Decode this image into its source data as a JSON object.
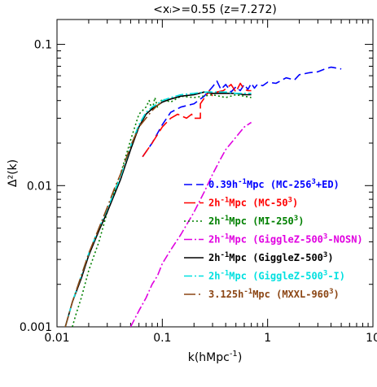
{
  "chart_data": {
    "type": "line",
    "title": "<x_i>=0.55 (z=7.272)",
    "xlabel": "k(hMpc^-1)",
    "ylabel": "Δ²(k)",
    "xscale": "log",
    "yscale": "log",
    "xlim": [
      0.01,
      10
    ],
    "ylim": [
      0.001,
      0.15
    ],
    "x_ticks": [
      {
        "value": 0.01,
        "label": "0.01"
      },
      {
        "value": 0.1,
        "label": "0.1"
      },
      {
        "value": 1,
        "label": "1"
      },
      {
        "value": 10,
        "label": "10"
      }
    ],
    "y_ticks": [
      {
        "value": 0.001,
        "label": "0.001"
      },
      {
        "value": 0.01,
        "label": "0.01"
      },
      {
        "value": 0.1,
        "label": "0.1"
      }
    ],
    "legend_position": "bottom-right",
    "series": [
      {
        "name": "0.39h^-1Mpc (MC-256^3+ED)",
        "color": "#0000ff",
        "dash": "10,5",
        "x": [
          0.065,
          0.08,
          0.1,
          0.12,
          0.15,
          0.2,
          0.25,
          0.3,
          0.33,
          0.36,
          0.4,
          0.45,
          0.5,
          0.55,
          0.6,
          0.65,
          0.7,
          0.75,
          0.8,
          0.9,
          1.0,
          1.2,
          1.5,
          1.8,
          2.0,
          2.5,
          3.0,
          3.5,
          4.0,
          4.5,
          5.0
        ],
        "y": [
          0.016,
          0.02,
          0.027,
          0.033,
          0.036,
          0.038,
          0.043,
          0.05,
          0.055,
          0.048,
          0.052,
          0.046,
          0.05,
          0.047,
          0.052,
          0.048,
          0.053,
          0.049,
          0.052,
          0.051,
          0.054,
          0.053,
          0.058,
          0.056,
          0.061,
          0.063,
          0.064,
          0.067,
          0.069,
          0.068,
          0.067
        ]
      },
      {
        "name": "2h^-1Mpc (MC-50^3)",
        "color": "#ff0000",
        "dash": "14,5",
        "x": [
          0.065,
          0.08,
          0.1,
          0.12,
          0.14,
          0.17,
          0.19,
          0.2,
          0.23,
          0.23,
          0.28,
          0.3,
          0.33,
          0.38,
          0.45,
          0.5,
          0.55,
          0.6,
          0.65,
          0.7
        ],
        "y": [
          0.016,
          0.02,
          0.026,
          0.03,
          0.032,
          0.03,
          0.032,
          0.03,
          0.03,
          0.038,
          0.047,
          0.043,
          0.046,
          0.047,
          0.052,
          0.046,
          0.053,
          0.048,
          0.047,
          0.047
        ]
      },
      {
        "name": "2h^-1Mpc (MI-250^3)",
        "color": "#008000",
        "dash": "2,3",
        "x": [
          0.014,
          0.015,
          0.017,
          0.02,
          0.025,
          0.03,
          0.04,
          0.05,
          0.06,
          0.07,
          0.075,
          0.08,
          0.085,
          0.09,
          0.1,
          0.12,
          0.15,
          0.2,
          0.3,
          0.4,
          0.5,
          0.6,
          0.7
        ],
        "y": [
          0.001,
          0.0012,
          0.0016,
          0.0025,
          0.004,
          0.0065,
          0.012,
          0.021,
          0.032,
          0.036,
          0.04,
          0.034,
          0.042,
          0.036,
          0.041,
          0.039,
          0.043,
          0.042,
          0.044,
          0.042,
          0.044,
          0.043,
          0.042
        ]
      },
      {
        "name": "2h^-1Mpc (GiggleZ-500^3-NOSN)",
        "color": "#e000e0",
        "dash": "10,3,2,3",
        "x": [
          0.05,
          0.06,
          0.07,
          0.08,
          0.09,
          0.1,
          0.12,
          0.15,
          0.2,
          0.25,
          0.3,
          0.35,
          0.4,
          0.5,
          0.6,
          0.7
        ],
        "y": [
          0.001,
          0.0013,
          0.0016,
          0.002,
          0.0023,
          0.0028,
          0.0035,
          0.0045,
          0.0065,
          0.009,
          0.012,
          0.015,
          0.018,
          0.022,
          0.026,
          0.028
        ]
      },
      {
        "name": "2h^-1Mpc (GiggleZ-500^3)",
        "color": "#000000",
        "dash": "",
        "x": [
          0.012,
          0.014,
          0.017,
          0.02,
          0.025,
          0.03,
          0.04,
          0.05,
          0.06,
          0.07,
          0.08,
          0.09,
          0.1,
          0.12,
          0.15,
          0.2,
          0.25,
          0.3,
          0.4,
          0.5,
          0.6,
          0.7
        ],
        "y": [
          0.001,
          0.0015,
          0.0022,
          0.0032,
          0.0048,
          0.0065,
          0.011,
          0.018,
          0.026,
          0.032,
          0.035,
          0.037,
          0.039,
          0.041,
          0.043,
          0.044,
          0.046,
          0.045,
          0.045,
          0.045,
          0.044,
          0.044
        ]
      },
      {
        "name": "2h^-1Mpc (GiggleZ-500^3-I)",
        "color": "#00e0e0",
        "dash": "10,3,2,3",
        "x": [
          0.012,
          0.014,
          0.017,
          0.02,
          0.025,
          0.03,
          0.04,
          0.05,
          0.06,
          0.07,
          0.08,
          0.09,
          0.1,
          0.12,
          0.15,
          0.2,
          0.25,
          0.3,
          0.4,
          0.5,
          0.6,
          0.7
        ],
        "y": [
          0.001,
          0.0015,
          0.0023,
          0.0033,
          0.005,
          0.0068,
          0.0115,
          0.019,
          0.027,
          0.033,
          0.036,
          0.038,
          0.04,
          0.042,
          0.044,
          0.045,
          0.046,
          0.046,
          0.046,
          0.045,
          0.045,
          0.045
        ]
      },
      {
        "name": "3.125h^-1Mpc (MXXL-960^3)",
        "color": "#8b4513",
        "dash": "14,4,2,4",
        "x": [
          0.012,
          0.014,
          0.017,
          0.02,
          0.025,
          0.03,
          0.035,
          0.04,
          0.05,
          0.06,
          0.07,
          0.08,
          0.09,
          0.1
        ],
        "y": [
          0.001,
          0.0015,
          0.0023,
          0.0033,
          0.005,
          0.007,
          0.0095,
          0.012,
          0.019,
          0.026,
          0.03,
          0.034,
          0.037,
          0.039
        ]
      }
    ],
    "legend": [
      {
        "main": "0.39h",
        "sup": "-1",
        "rest": "Mpc (MC-256",
        "sup2": "3",
        "tail": "+ED)",
        "color": "#0000ff",
        "dash": "10,5"
      },
      {
        "main": "2h",
        "sup": "-1",
        "rest": "Mpc (MC-50",
        "sup2": "3",
        "tail": ")",
        "color": "#ff0000",
        "dash": "14,5"
      },
      {
        "main": "2h",
        "sup": "-1",
        "rest": "Mpc (MI-250",
        "sup2": "3",
        "tail": ")",
        "color": "#008000",
        "dash": "2,3"
      },
      {
        "main": "2h",
        "sup": "-1",
        "rest": "Mpc (GiggleZ-500",
        "sup2": "3",
        "tail": "-NOSN)",
        "color": "#e000e0",
        "dash": "10,3,2,3"
      },
      {
        "main": "2h",
        "sup": "-1",
        "rest": "Mpc (GiggleZ-500",
        "sup2": "3",
        "tail": ")",
        "color": "#000000",
        "dash": ""
      },
      {
        "main": "2h",
        "sup": "-1",
        "rest": "Mpc (GiggleZ-500",
        "sup2": "3",
        "tail": "-I)",
        "color": "#00e0e0",
        "dash": "10,3,2,3"
      },
      {
        "main": "3.125h",
        "sup": "-1",
        "rest": "Mpc (MXXL-960",
        "sup2": "3",
        "tail": ")",
        "color": "#8b4513",
        "dash": "14,4,2,4"
      }
    ]
  }
}
